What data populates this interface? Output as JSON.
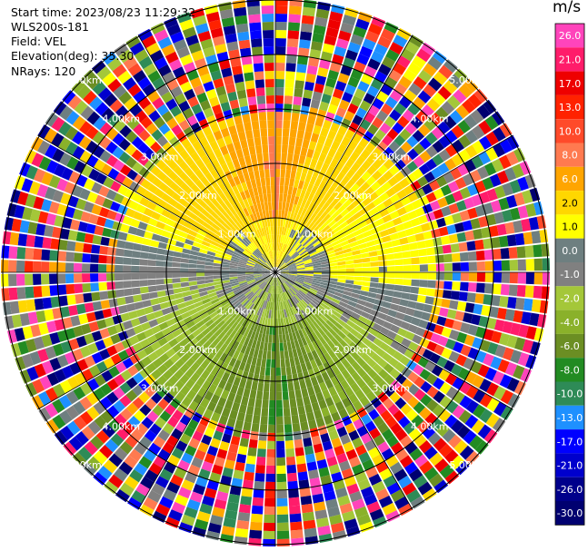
{
  "header": {
    "start_time": "Start time: 2023/08/23 11:29:32",
    "site": "WLS200s-181",
    "field": "Field: VEL",
    "elevation": "Elevation(deg): 35.30",
    "nrays": "NRays: 120"
  },
  "colorbar": {
    "unit": "m/s",
    "labels": [
      "26.0",
      "21.0",
      "17.0",
      "13.0",
      "10.0",
      "8.0",
      "6.0",
      "2.0",
      "1.0",
      "0.0",
      "-1.0",
      "-2.0",
      "-4.0",
      "-6.0",
      "-8.0",
      "-10.0",
      "-13.0",
      "-17.0",
      "-21.0",
      "-26.0",
      "-30.0"
    ],
    "colors": [
      "#ff44bb",
      "#ff1c6a",
      "#ee0000",
      "#ff2200",
      "#ff4a2a",
      "#ff7a50",
      "#ffa500",
      "#ffd700",
      "#ffff00",
      "#6e7f80",
      "#808080",
      "#a4c739",
      "#8ab12a",
      "#6b8e23",
      "#228b22",
      "#2e8b57",
      "#1e90ff",
      "#0000ff",
      "#0000cd",
      "#00008b",
      "#000070"
    ]
  },
  "chart_data": {
    "type": "radial_ppi",
    "field": "VEL",
    "units": "m/s",
    "nrays": 120,
    "elevation_deg": 35.3,
    "range_rings": [
      {
        "range_km": 1.0,
        "label": "1.00km"
      },
      {
        "range_km": 2.0,
        "label": "2.00km"
      },
      {
        "range_km": 3.0,
        "label": "3.00km"
      },
      {
        "range_km": 4.0,
        "label": "4.00km"
      },
      {
        "range_km": 5.0,
        "label": "5.00km"
      }
    ],
    "spokes_deg": [
      0,
      30,
      60,
      90,
      120,
      150,
      180,
      210,
      240,
      270,
      300,
      330
    ],
    "max_range_km": 5.0,
    "valid_data_range_km": 3.0,
    "velocity_by_azimuth": {
      "north": 8.0,
      "northeast": 2.0,
      "east": 1.5,
      "south": -6.0,
      "southwest": -2.5,
      "west": -0.5,
      "northwest": 4.0
    }
  }
}
